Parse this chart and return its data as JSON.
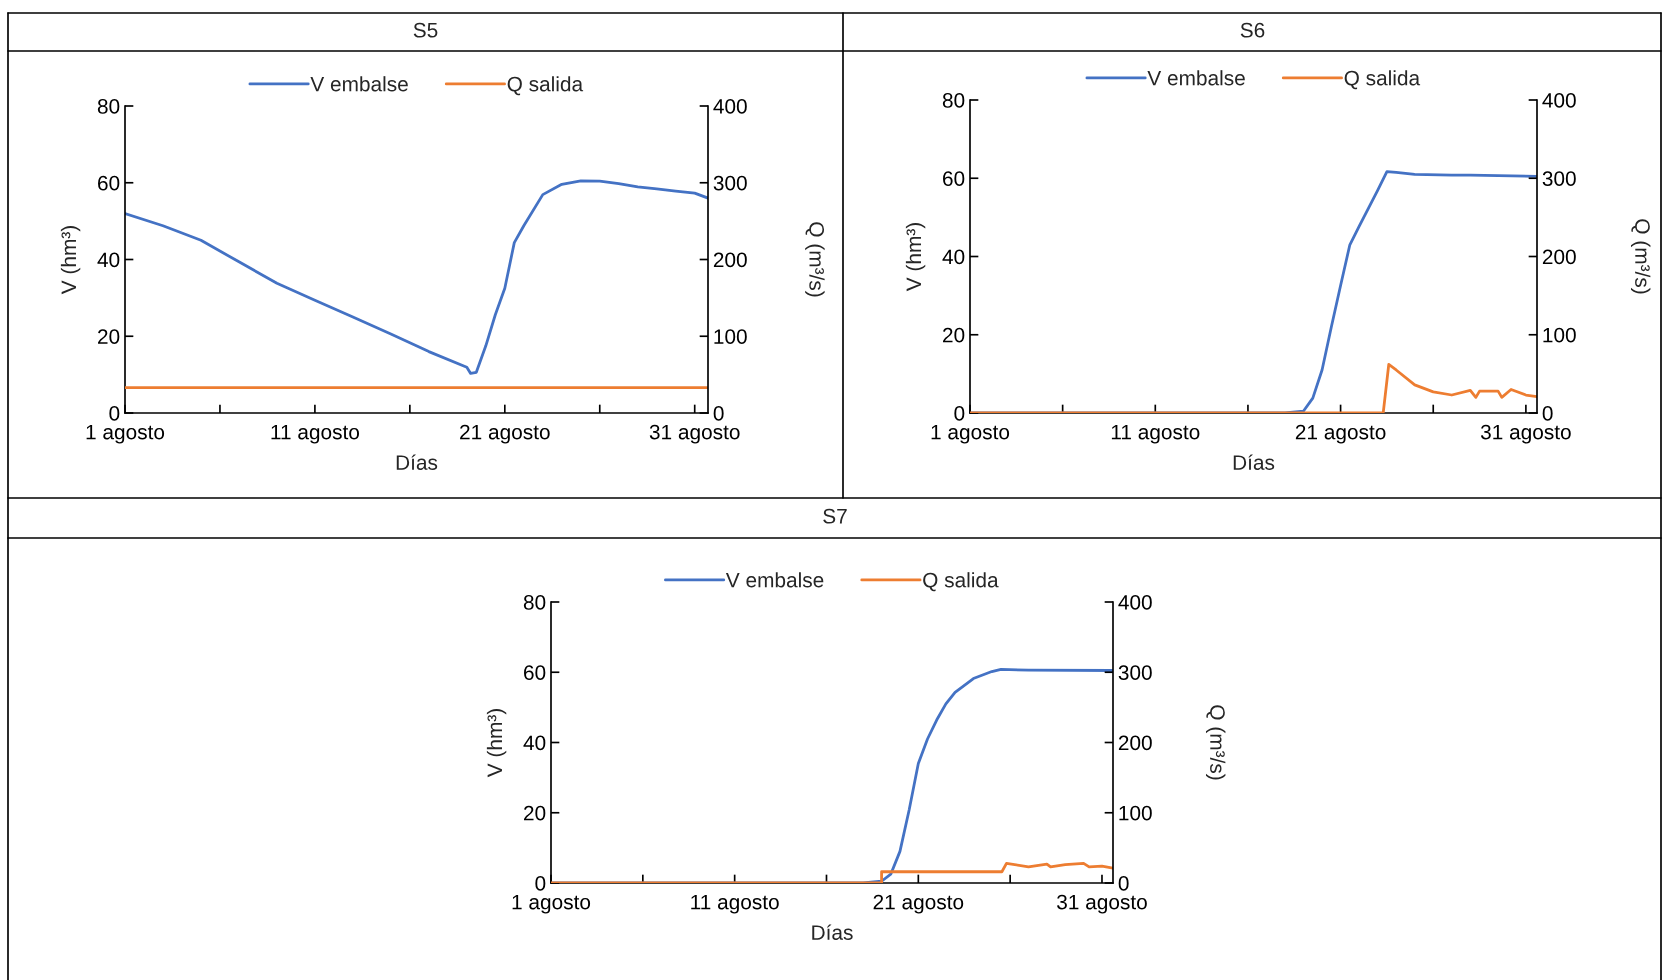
{
  "chart_data": [
    {
      "type": "line",
      "title": "S5",
      "xlabel": "Días",
      "ylabel": "V (hm³)",
      "y2label": "Q (m³/s)",
      "legend": "top",
      "grid": false,
      "xlim": [
        1,
        31.7
      ],
      "xticks": [
        {
          "value": 1,
          "label": "1 agosto"
        },
        {
          "value": 6,
          "label": null
        },
        {
          "value": 11,
          "label": "11 agosto"
        },
        {
          "value": 16,
          "label": null
        },
        {
          "value": 21,
          "label": "21 agosto"
        },
        {
          "value": 26,
          "label": null
        },
        {
          "value": 31,
          "label": "31 agosto"
        }
      ],
      "ylim": [
        0,
        80
      ],
      "yticks": [
        0,
        20,
        40,
        60,
        80
      ],
      "y2lim": [
        0,
        400
      ],
      "y2ticks": [
        0,
        100,
        200,
        300,
        400
      ],
      "series": [
        {
          "name": "V embalse",
          "color": "#4472c4",
          "x": [
            1,
            3,
            5,
            7,
            9,
            11,
            13,
            15,
            17,
            19,
            19.2,
            19.5,
            20,
            20.5,
            21,
            21.5,
            22,
            23,
            24,
            25,
            26,
            27,
            28,
            29,
            30,
            31,
            31.7
          ],
          "values": [
            52,
            48.8,
            45,
            39.4,
            33.8,
            29.4,
            25,
            20.6,
            16,
            11.9,
            10.3,
            10.6,
            17.5,
            25.6,
            32.5,
            44.4,
            48.8,
            56.9,
            59.6,
            60.5,
            60.4,
            59.8,
            58.9,
            58.4,
            57.8,
            57.3,
            56
          ]
        },
        {
          "name": "Q salida",
          "color": "#ed7d31",
          "axis": "y2",
          "x": [
            1,
            31.7
          ],
          "values": [
            33,
            33
          ]
        }
      ]
    },
    {
      "type": "line",
      "title": "S6",
      "xlabel": "Días",
      "ylabel": "V (hm³)",
      "y2label": "Q (m³/s)",
      "legend": "top",
      "grid": false,
      "xlim": [
        1,
        31.6
      ],
      "xticks": [
        {
          "value": 1,
          "label": "1 agosto"
        },
        {
          "value": 6,
          "label": null
        },
        {
          "value": 11,
          "label": "11 agosto"
        },
        {
          "value": 16,
          "label": null
        },
        {
          "value": 21,
          "label": "21 agosto"
        },
        {
          "value": 26,
          "label": null
        },
        {
          "value": 31,
          "label": "31 agosto"
        }
      ],
      "ylim": [
        0,
        80
      ],
      "yticks": [
        0,
        20,
        40,
        60,
        80
      ],
      "y2lim": [
        0,
        400
      ],
      "y2ticks": [
        0,
        100,
        200,
        300,
        400
      ],
      "series": [
        {
          "name": "V embalse",
          "color": "#4472c4",
          "x": [
            1,
            18,
            19,
            19.5,
            20,
            20.5,
            21,
            21.5,
            22,
            22.5,
            23,
            23.5,
            24,
            25,
            27,
            28,
            31.6
          ],
          "values": [
            0,
            0,
            0.5,
            3.8,
            11,
            22,
            32.6,
            43,
            47.7,
            52.3,
            56.9,
            61.7,
            61.5,
            61,
            60.8,
            60.8,
            60.5
          ]
        },
        {
          "name": "Q salida",
          "color": "#ed7d31",
          "axis": "y2",
          "x": [
            1,
            23.3,
            23.6,
            24,
            25,
            26,
            27,
            28,
            28.3,
            28.5,
            29.5,
            29.7,
            30.2,
            31,
            31.6
          ],
          "values": [
            0,
            0,
            62,
            55,
            36,
            27,
            23,
            29,
            20,
            28,
            28,
            20,
            30,
            23,
            21
          ]
        }
      ]
    },
    {
      "type": "line",
      "title": "S7",
      "xlabel": "Días",
      "ylabel": "V (hm³)",
      "y2label": "Q (m³/s)",
      "legend": "top",
      "grid": false,
      "xlim": [
        1,
        31.6
      ],
      "xticks": [
        {
          "value": 1,
          "label": "1 agosto"
        },
        {
          "value": 6,
          "label": null
        },
        {
          "value": 11,
          "label": "11 agosto"
        },
        {
          "value": 16,
          "label": null
        },
        {
          "value": 21,
          "label": "21 agosto"
        },
        {
          "value": 26,
          "label": null
        },
        {
          "value": 31,
          "label": "31 agosto"
        }
      ],
      "ylim": [
        0,
        80
      ],
      "yticks": [
        0,
        20,
        40,
        60,
        80
      ],
      "y2lim": [
        0,
        400
      ],
      "y2ticks": [
        0,
        100,
        200,
        300,
        400
      ],
      "series": [
        {
          "name": "V embalse",
          "color": "#4472c4",
          "x": [
            1,
            18,
            19,
            19.5,
            20,
            20.5,
            21,
            21.5,
            22,
            22.5,
            23,
            24,
            25,
            25.5,
            27,
            31.6
          ],
          "values": [
            0,
            0,
            0.5,
            2.5,
            9,
            20.8,
            34,
            41,
            46.4,
            51,
            54.3,
            58.2,
            60.2,
            60.8,
            60.6,
            60.5
          ]
        },
        {
          "name": "Q salida",
          "color": "#ed7d31",
          "axis": "y2",
          "x": [
            1,
            19,
            19,
            25.55,
            25.8,
            27,
            28,
            28.2,
            29,
            30,
            30.3,
            31,
            31.6
          ],
          "values": [
            0,
            0,
            16,
            16,
            28,
            23,
            27,
            23,
            26,
            28,
            23,
            24,
            21
          ]
        }
      ]
    }
  ]
}
